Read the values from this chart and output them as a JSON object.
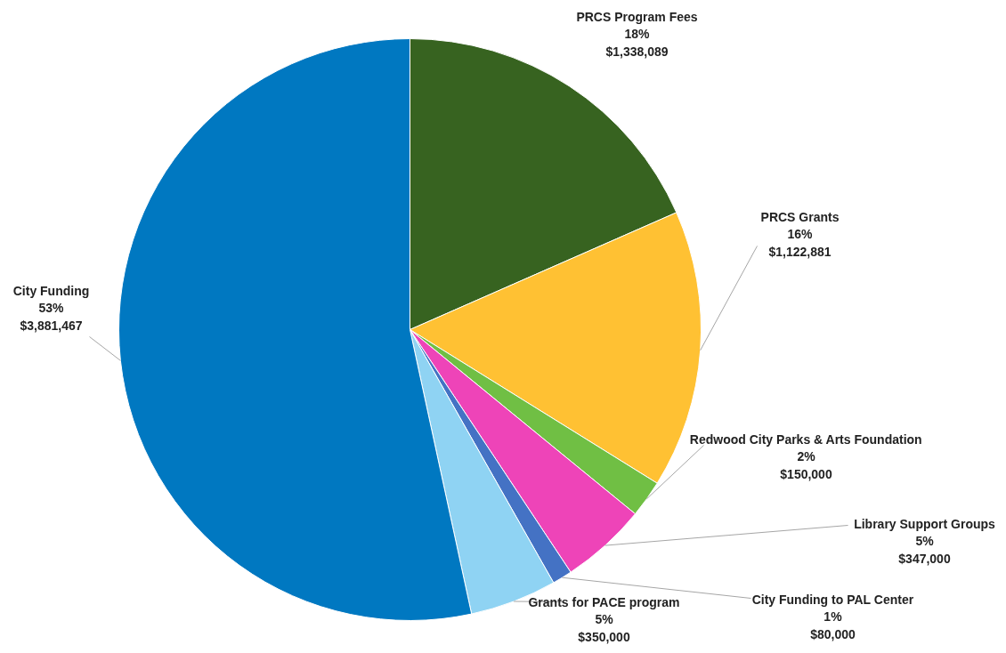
{
  "chart_data": {
    "type": "pie",
    "categories": [
      "PRCS Program Fees",
      "PRCS Grants",
      "Redwood City Parks & Arts Foundation",
      "Library Support Groups",
      "City Funding to PAL Center",
      "Grants for PACE program",
      "City Funding"
    ],
    "values": [
      1338089,
      1122881,
      150000,
      347000,
      80000,
      350000,
      3881467
    ],
    "colors": [
      "#376320",
      "#ffc133",
      "#70bf44",
      "#ee44b8",
      "#4472c4",
      "#8fd3f3",
      "#0078c1"
    ],
    "value_labels": [
      "18%\n$1,338,089",
      "16%\n$1,122,881",
      "2%\n$150,000",
      "5%\n$347,000",
      "1%\n$80,000",
      "5%\n$350,000",
      "53%\n$3,881,467"
    ]
  }
}
